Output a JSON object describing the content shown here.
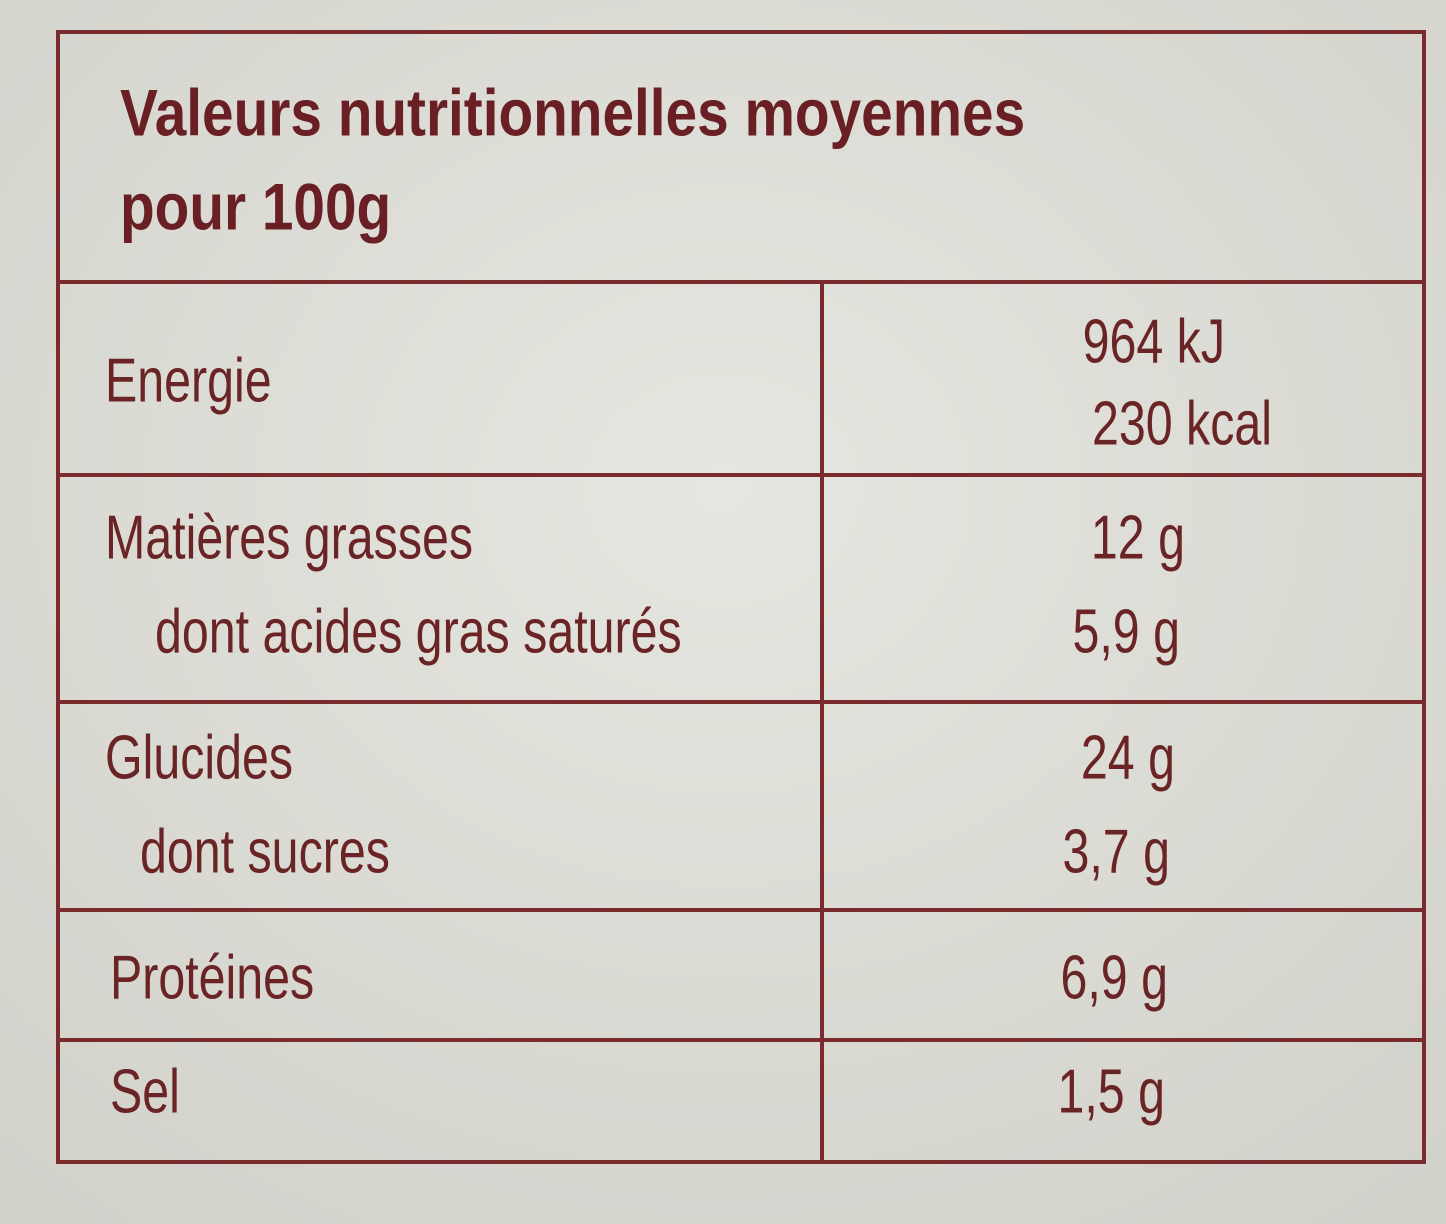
{
  "header": {
    "title": [
      "Valeurs nutritionnelles moyennes",
      "pour 100g"
    ]
  },
  "table": {
    "rows": [
      {
        "label": [
          "Energie"
        ],
        "values": [
          "964 kJ",
          "230 kcal"
        ]
      },
      {
        "label": [
          "Matières grasses",
          "dont acides gras saturés"
        ],
        "values": [
          "12 g",
          "5,9 g"
        ]
      },
      {
        "label": [
          "Glucides",
          "dont sucres"
        ],
        "values": [
          "24 g",
          "3,7 g"
        ]
      },
      {
        "label": [
          "Protéines"
        ],
        "values": [
          "6,9 g"
        ]
      },
      {
        "label": [
          "Sel"
        ],
        "values": [
          "1,5 g"
        ]
      }
    ]
  }
}
